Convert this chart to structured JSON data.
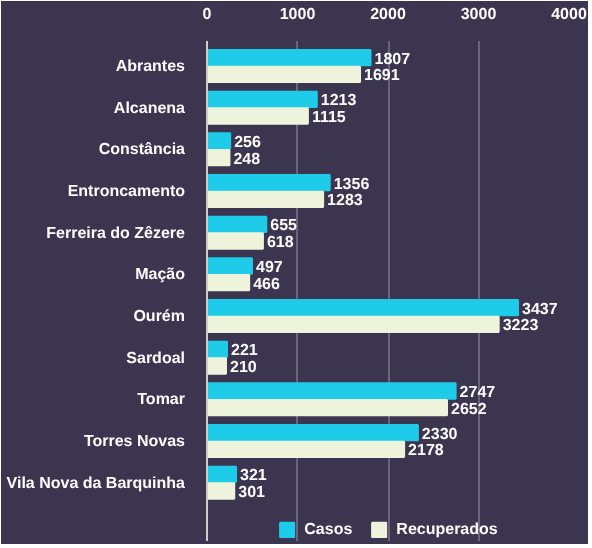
{
  "chart_data": {
    "type": "bar",
    "orientation": "horizontal",
    "categories": [
      "Abrantes",
      "Alcanena",
      "Constância",
      "Entroncamento",
      "Ferreira do Zêzere",
      "Mação",
      "Ourém",
      "Sardoal",
      "Tomar",
      "Torres Novas",
      "Vila Nova da Barquinha"
    ],
    "series": [
      {
        "name": "Casos",
        "color": "#1ecbe8",
        "values": [
          1807,
          1213,
          256,
          1356,
          655,
          497,
          3437,
          221,
          2747,
          2330,
          321
        ]
      },
      {
        "name": "Recuperados",
        "color": "#eef4dc",
        "values": [
          1691,
          1115,
          248,
          1283,
          618,
          466,
          3223,
          210,
          2652,
          2178,
          301
        ]
      }
    ],
    "xlim": [
      0,
      4000
    ],
    "xticks": [
      0,
      1000,
      2000,
      3000,
      4000
    ],
    "grid": "x",
    "legend": "bottom",
    "data_labels": true
  }
}
